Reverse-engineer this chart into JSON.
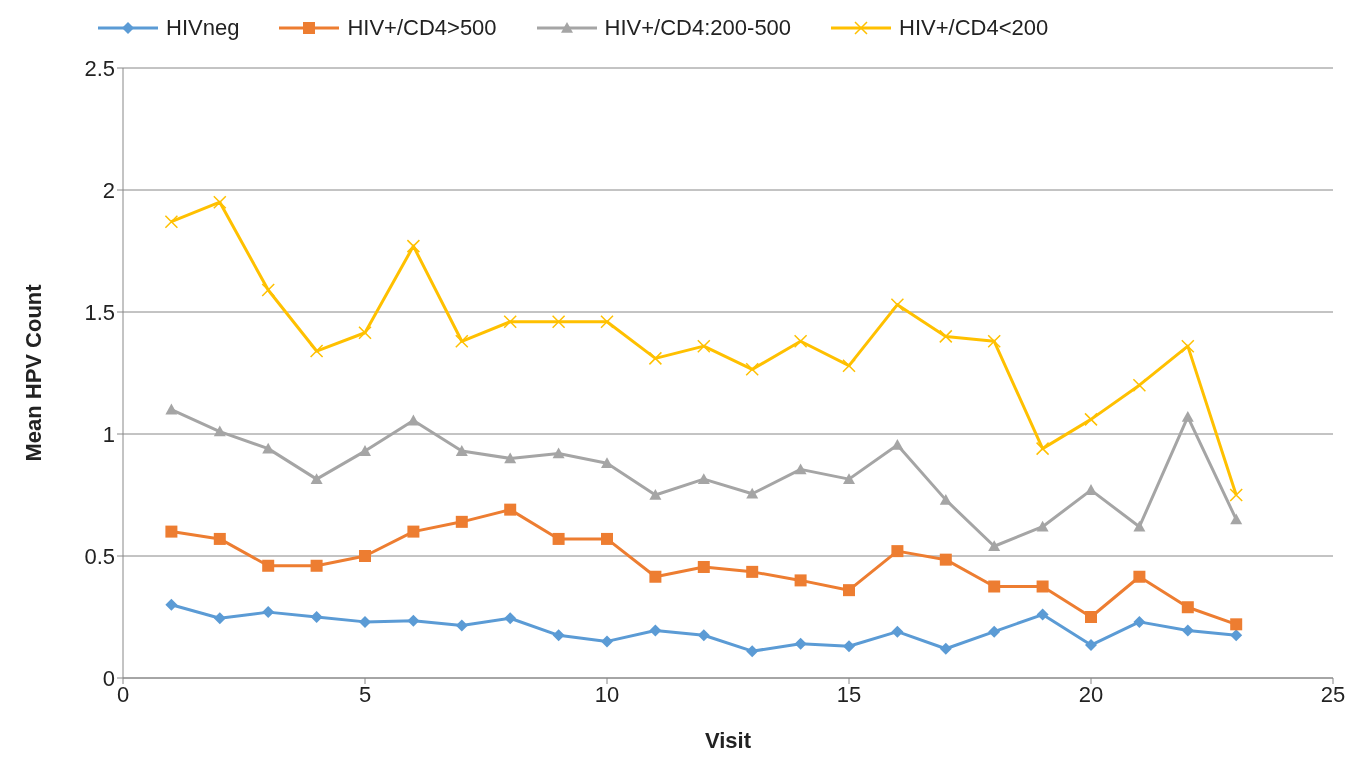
{
  "chart_data": {
    "type": "line",
    "xlabel": "Visit",
    "ylabel": "Mean HPV Count",
    "x": [
      1,
      2,
      3,
      4,
      5,
      6,
      7,
      8,
      9,
      10,
      11,
      12,
      13,
      14,
      15,
      16,
      17,
      18,
      19,
      20,
      21,
      22,
      23
    ],
    "series": [
      {
        "name": "HIVneg",
        "color": "#5b9bd5",
        "marker": "diamond",
        "values": [
          0.3,
          0.245,
          0.27,
          0.25,
          0.23,
          0.235,
          0.215,
          0.245,
          0.175,
          0.15,
          0.195,
          0.175,
          0.11,
          0.14,
          0.13,
          0.19,
          0.12,
          0.19,
          0.26,
          0.135,
          0.23,
          0.195,
          0.175
        ]
      },
      {
        "name": "HIV+/CD4>500",
        "color": "#ed7d31",
        "marker": "square",
        "values": [
          0.6,
          0.57,
          0.46,
          0.46,
          0.5,
          0.6,
          0.64,
          0.69,
          0.57,
          0.57,
          0.415,
          0.455,
          0.435,
          0.4,
          0.36,
          0.52,
          0.485,
          0.375,
          0.375,
          0.25,
          0.415,
          0.29,
          0.22
        ]
      },
      {
        "name": "HIV+/CD4:200-500",
        "color": "#a5a5a5",
        "marker": "triangle",
        "values": [
          1.1,
          1.01,
          0.94,
          0.815,
          0.93,
          1.055,
          0.93,
          0.9,
          0.92,
          0.88,
          0.75,
          0.815,
          0.755,
          0.855,
          0.815,
          0.955,
          0.73,
          0.54,
          0.62,
          0.77,
          0.62,
          1.07,
          0.65
        ]
      },
      {
        "name": "HIV+/CD4<200",
        "color": "#ffc000",
        "marker": "cross",
        "values": [
          1.87,
          1.95,
          1.59,
          1.34,
          1.415,
          1.77,
          1.38,
          1.46,
          1.46,
          1.46,
          1.31,
          1.36,
          1.265,
          1.38,
          1.28,
          1.53,
          1.4,
          1.38,
          0.94,
          1.06,
          1.2,
          1.36,
          0.75
        ]
      }
    ],
    "xlim": [
      0,
      25
    ],
    "xticks": [
      0,
      5,
      10,
      15,
      20,
      25
    ],
    "ylim": [
      0,
      2.5
    ],
    "yticks": [
      0,
      0.5,
      1,
      1.5,
      2,
      2.5
    ],
    "grid": "y",
    "legend": "top",
    "line_style": "solid"
  }
}
